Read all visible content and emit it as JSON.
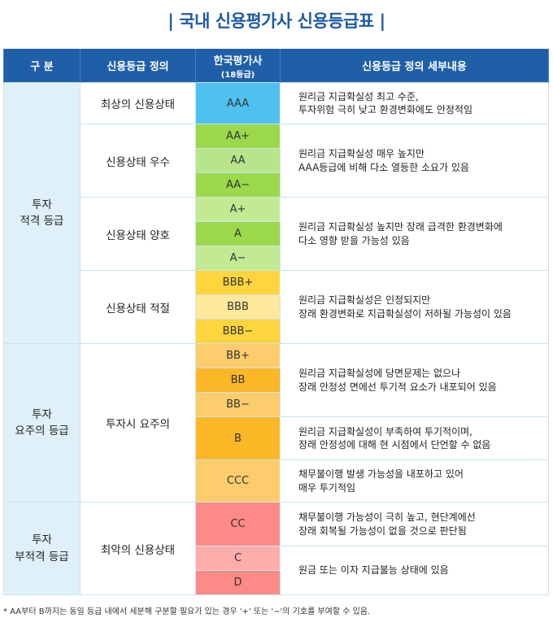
{
  "title": "| 국내 신용평가사 신용등급표 |",
  "header": {
    "col1": "구  분",
    "col2": "신용등급 정의",
    "col3": "한국평가사",
    "col3_sub": "(18등급)",
    "col4": "신용등급 정의 세부내용"
  },
  "categories": {
    "invest": [
      "투자",
      "적격 등급"
    ],
    "caution": [
      "투자",
      "요주의 등급"
    ],
    "nonInvest": [
      "투자",
      "부적격 등급"
    ]
  },
  "definitions": {
    "best": "최상의 신용상태",
    "excellent": "신용상태 우수",
    "good": "신용상태 양호",
    "adequate": "신용상태 적절",
    "caution": "투자시 요주의",
    "worst": "최악의 신용상태"
  },
  "grades": [
    "AAA",
    "AA+",
    "AA",
    "AA−",
    "A+",
    "A",
    "A−",
    "BBB+",
    "BBB",
    "BBB−",
    "BB+",
    "BB",
    "BB−",
    "B",
    "CCC",
    "CC",
    "C",
    "D"
  ],
  "grade_colors": {
    "AAA": "#4fc1ee",
    "AA+": "#9bd84a",
    "AA": "#b8e58a",
    "AA-": "#9bd84a",
    "A+": "#c1ea93",
    "A": "#9bd84a",
    "A-": "#c1ea93",
    "BBB+": "#ffd53e",
    "BBB": "#fee89a",
    "BBB-": "#ffd53e",
    "BB+": "#fdcc6c",
    "BB": "#fbb726",
    "BB-": "#fdcc6c",
    "B": "#fbb726",
    "CCC": "#fdcc6c",
    "CC": "#fe8a87",
    "C": "#fdaeab",
    "D": "#fe8a87"
  },
  "details": {
    "aaa": [
      "원리금 지급확실성 최고 수준,",
      "투자위험 극히 낮고 환경변화에도 안정적임"
    ],
    "aa": [
      "원리금 지급확실성 매우 높지만",
      "AAA등급에 비해 다소 열등한 소요가 있음"
    ],
    "a": [
      "원리금 지급확실성 높지만 장래 급격한 환경변화에",
      "다소 영향 받을 가능성 있음"
    ],
    "bbb": [
      "원리금 지급확실성은 인정되지만",
      "장래 환경변화로 지급확실성이 저하될 가능성이 있음"
    ],
    "bb": [
      "원리금 지급확실성에 당면문제는 없으나",
      "장래 안정성 면에선 투기적 요소가 내포되어 있음"
    ],
    "b": [
      "원리금 지급확실성이 부족하여 투기적이며,",
      "장래 안정성에 대해 현 시점에서 단언할 수 없음"
    ],
    "ccc": [
      "채무불이행 발생 가능성을 내포하고 있어",
      "매우 투기적임"
    ],
    "cc": [
      "채무불이행 가능성이 극히 높고, 현단계에선",
      "장래 회복될 가능성이 없을 것으로 판단됨"
    ],
    "cd": "원금 또는 이자 지급불능 상태에 있음"
  },
  "footnote": "* AA부터 B까지는 동일 등급 내에서 세분해 구분할 필요가 있는 경우 '+' 또는 '−'의 기호를 부여할 수 있음."
}
